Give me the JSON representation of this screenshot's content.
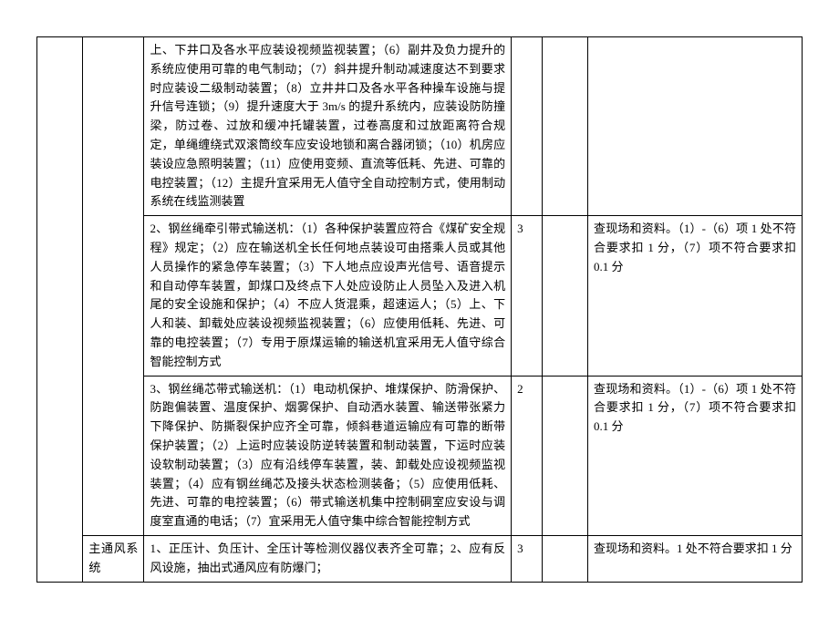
{
  "rows": [
    {
      "c0": "",
      "c1": "",
      "c2": "上、下井口及各水平应装设视频监视装置；（6）副井及负力提升的系统应使用可靠的电气制动；（7）斜井提升制动减速度达不到要求时应装设二级制动装置；（8）立井井口及各水平各种操车设施与提升信号连锁；（9）提升速度大于 3m/s 的提升系统内，应装设防防撞梁，防过卷、过放和缓冲托罐装置，过卷高度和过放距离符合规定，单绳缠绕式双滚筒绞车应安设地锁和离合器闭锁；（10）机房应装设应急照明装置；（11）应使用变频、直流等低耗、先进、可靠的电控装置；（12）主提升宜采用无人值守全自动控制方式，使用制动系统在线监测装置",
      "c3": "",
      "c4": "",
      "c5": ""
    },
    {
      "c0": "",
      "c1": "",
      "c2": "2、钢丝绳牵引带式输送机：（1）各种保护装置应符合《煤矿安全规程》规定；（2）应在输送机全长任何地点装设可由搭乘人员或其他人员操作的紧急停车装置；（3）下人地点应设声光信号、语音提示和自动停车装置，卸煤口及终点下人处应设防止人员坠入及进入机尾的安全设施和保护；（4）不应人货混乘，超速运人；（5）上、下人和装、卸载处应装设视频监视装置；（6）应使用低耗、先进、可靠的电控装置；（7）专用于原煤运输的输送机宜采用无人值守综合智能控制方式",
      "c3": "3",
      "c4": "",
      "c5": "查现场和资料。（1）-（6）项 1 处不符合要求扣 1 分，（7）项不符合要求扣 0.1 分"
    },
    {
      "c0": "",
      "c1": "",
      "c2": "3、钢丝绳芯带式输送机：（1）电动机保护、堆煤保护、防滑保护、防跑偏装置、温度保护、烟雾保护、自动洒水装置、输送带张紧力下降保护、防撕裂保护应齐全可靠，倾斜巷道运输应有可靠的断带保护装置；（2）上运时应装设防逆转装置和制动装置，下运时应装设软制动装置；（3）应有沿线停车装置，装、卸载处应设视频监视装置；（4）应有钢丝绳芯及接头状态检测装备；（5）应使用低耗、先进、可靠的电控装置；（6）带式输送机集中控制硐室应安设与调度室直通的电话；（7）宜采用无人值守集中综合智能控制方式",
      "c3": "2",
      "c4": "",
      "c5": "查现场和资料。（1）-（6）项 1 处不符合要求扣 1 分，（7）项不符合要求扣 0.1 分"
    },
    {
      "c0": "",
      "c1": "主通风系统",
      "c2": "1、正压计、负压计、全压计等检测仪器仪表齐全可靠；2、应有反风设施，抽出式通风应有防爆门；",
      "c3": "3",
      "c4": "",
      "c5": "查现场和资料。1 处不符合要求扣 1 分"
    }
  ]
}
